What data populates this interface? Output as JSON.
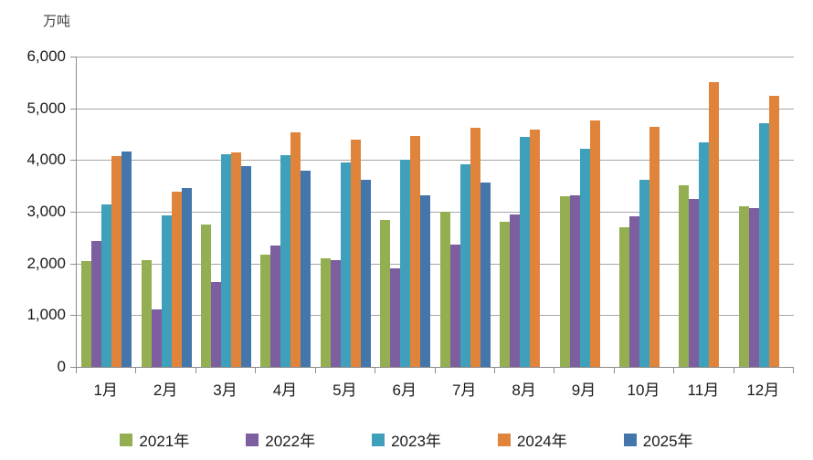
{
  "unit_label": "万吨",
  "colors": {
    "grid": "#a6a6a6",
    "axis": "#8c8c8c",
    "text": "#1a1a1a"
  },
  "chart_data": {
    "type": "bar",
    "title": "",
    "ylabel": "万吨",
    "xlabel": "",
    "ylim": [
      0,
      6000
    ],
    "ytick_step": 1000,
    "yticks": [
      "0",
      "1,000",
      "2,000",
      "3,000",
      "4,000",
      "5,000",
      "6,000"
    ],
    "grid": true,
    "legend_position": "bottom",
    "categories": [
      "1月",
      "2月",
      "3月",
      "4月",
      "5月",
      "6月",
      "7月",
      "8月",
      "9月",
      "10月",
      "11月",
      "12月"
    ],
    "series": [
      {
        "name": "2021年",
        "color": "#94af52",
        "values": [
          2050,
          2070,
          2750,
          2180,
          2100,
          2850,
          3000,
          2810,
          3300,
          2700,
          3520,
          3100
        ]
      },
      {
        "name": "2022年",
        "color": "#7d5fa0",
        "values": [
          2430,
          1110,
          1650,
          2350,
          2070,
          1900,
          2360,
          2950,
          3320,
          2920,
          3240,
          3080
        ]
      },
      {
        "name": "2023年",
        "color": "#3fa0bb",
        "values": [
          3150,
          2930,
          4120,
          4090,
          3960,
          4010,
          3920,
          4440,
          4210,
          3610,
          4350,
          4720
        ]
      },
      {
        "name": "2024年",
        "color": "#e0843c",
        "values": [
          4070,
          3390,
          4150,
          4530,
          4390,
          4470,
          4620,
          4590,
          4760,
          4640,
          5510,
          5250
        ]
      },
      {
        "name": "2025年",
        "color": "#4476ab",
        "values": [
          4170,
          3460,
          3890,
          3790,
          3610,
          3320,
          3570,
          null,
          null,
          null,
          null,
          null
        ]
      }
    ]
  }
}
